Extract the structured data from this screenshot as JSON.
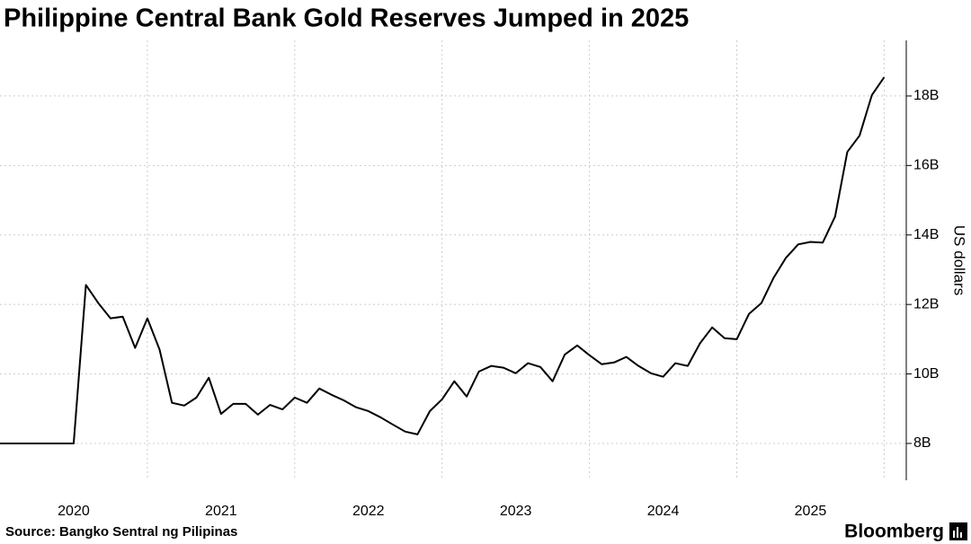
{
  "chart_data": {
    "type": "line",
    "title": "Philippine Central Bank Gold Reserves Jumped in 2025",
    "ylabel": "US dollars",
    "source": "Source: Bangko Sentral ng Pilipinas",
    "brand": "Bloomberg",
    "x": [
      2020,
      2020.083,
      2020.167,
      2020.25,
      2020.333,
      2020.417,
      2020.5,
      2020.583,
      2020.667,
      2020.75,
      2020.833,
      2020.917,
      2021,
      2021.083,
      2021.167,
      2021.25,
      2021.333,
      2021.417,
      2021.5,
      2021.583,
      2021.667,
      2021.75,
      2021.833,
      2021.917,
      2022,
      2022.083,
      2022.167,
      2022.25,
      2022.333,
      2022.417,
      2022.5,
      2022.583,
      2022.667,
      2022.75,
      2022.833,
      2022.917,
      2023,
      2023.083,
      2023.167,
      2023.25,
      2023.333,
      2023.417,
      2023.5,
      2023.583,
      2023.667,
      2023.75,
      2023.833,
      2023.917,
      2024,
      2024.083,
      2024.167,
      2024.25,
      2024.333,
      2024.417,
      2024.5,
      2024.583,
      2024.667,
      2024.75,
      2024.833,
      2024.917,
      2025,
      2025.083,
      2025.167,
      2025.25,
      2025.333,
      2025.417,
      2025.5,
      2025.583,
      2025.667,
      2025.75,
      2025.833,
      2025.917,
      2026
    ],
    "series": [
      {
        "name": "Gold reserves",
        "color": "#000000",
        "values": [
          8,
          8,
          8,
          8,
          8,
          8,
          8,
          12.56,
          12.04,
          11.6,
          11.65,
          10.75,
          11.6,
          10.7,
          9.17,
          9.09,
          9.32,
          9.89,
          8.85,
          9.14,
          9.14,
          8.83,
          9.11,
          8.98,
          9.32,
          9.17,
          9.58,
          9.4,
          9.24,
          9.04,
          8.93,
          8.75,
          8.54,
          8.34,
          8.26,
          8.93,
          9.27,
          9.79,
          9.35,
          10.07,
          10.23,
          10.18,
          10.02,
          10.31,
          10.2,
          9.79,
          10.56,
          10.82,
          10.54,
          10.28,
          10.33,
          10.49,
          10.23,
          10.02,
          9.92,
          10.31,
          10.23,
          10.88,
          11.34,
          11.03,
          11.0,
          11.73,
          12.04,
          12.77,
          13.34,
          13.73,
          13.8,
          13.78,
          14.53,
          16.39,
          16.86,
          18.03,
          18.54
        ]
      }
    ],
    "xlim": [
      2020,
      2026.15
    ],
    "xticks": [
      {
        "value": 2020.5,
        "label": "2020"
      },
      {
        "value": 2021.5,
        "label": "2021"
      },
      {
        "value": 2022.5,
        "label": "2022"
      },
      {
        "value": 2023.5,
        "label": "2023"
      },
      {
        "value": 2024.5,
        "label": "2024"
      },
      {
        "value": 2025.5,
        "label": "2025"
      }
    ],
    "xgrid": [
      2021,
      2022,
      2023,
      2024,
      2025,
      2026
    ],
    "ylim": [
      6.94,
      19.6
    ],
    "yticks": [
      {
        "value": 8,
        "label": "8B"
      },
      {
        "value": 10,
        "label": "10B"
      },
      {
        "value": 12,
        "label": "12B"
      },
      {
        "value": 14,
        "label": "14B"
      },
      {
        "value": 16,
        "label": "16B"
      },
      {
        "value": 18,
        "label": "18B"
      }
    ],
    "grid": true
  }
}
